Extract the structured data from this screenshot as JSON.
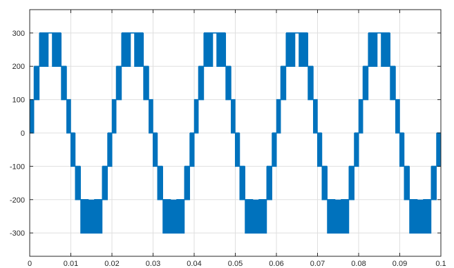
{
  "chart_data": {
    "type": "line",
    "title": "",
    "xlabel": "",
    "ylabel": "",
    "xlim": [
      0,
      0.1
    ],
    "ylim": [
      -370,
      370
    ],
    "grid": true,
    "legend": "none",
    "x_ticks": [
      0,
      0.01,
      0.02,
      0.03,
      0.04,
      0.05,
      0.06,
      0.07,
      0.08,
      0.09,
      0.1
    ],
    "x_tick_labels": [
      "0",
      "0.01",
      "0.02",
      "0.03",
      "0.04",
      "0.05",
      "0.06",
      "0.07",
      "0.08",
      "0.09",
      "0.1"
    ],
    "y_ticks": [
      300,
      200,
      100,
      0,
      -100,
      -200,
      -300
    ],
    "y_tick_labels": [
      "300",
      "200",
      "100",
      "0",
      "-100",
      "-200",
      "-300"
    ],
    "series": [
      {
        "color": "#0072BD",
        "description": "multilevel PWM staircase waveform, 50 Hz fundamental, levels 0/±100/±200/±300, switching between adjacent levels",
        "fundamental_frequency_hz": 50,
        "amplitude": 300,
        "levels": [
          -300,
          -200,
          -100,
          0,
          100,
          200,
          300
        ]
      }
    ]
  },
  "colors": {
    "line": "#0072BD",
    "axes": "#262626",
    "grid": "#DFDFDF"
  }
}
